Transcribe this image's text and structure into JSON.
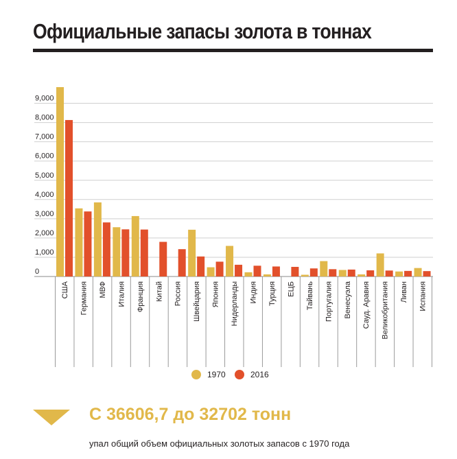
{
  "title": "Официальные запасы золота в тоннах",
  "colors": {
    "series_1970": "#e1b84a",
    "series_2016": "#e2502b",
    "grid": "#cfcfcf",
    "text": "#231f20"
  },
  "chart_data": {
    "type": "bar",
    "title": "Официальные запасы золота в тоннах",
    "xlabel": "",
    "ylabel": "",
    "ylim": [
      0,
      10000
    ],
    "yticks": [
      0,
      1000,
      2000,
      3000,
      4000,
      5000,
      6000,
      7000,
      8000,
      9000
    ],
    "ytick_labels": [
      "0",
      "1,000",
      "2,000",
      "3,000",
      "4,000",
      "5,000",
      "6,000",
      "7,000",
      "8,000",
      "9,000"
    ],
    "grid": true,
    "legend_position": "bottom",
    "categories": [
      "США",
      "Германия",
      "МВФ",
      "Италия",
      "Франция",
      "Китай",
      "Россия",
      "Швейцария",
      "Япония",
      "Нидерланды",
      "Индия",
      "Турция",
      "ЕЦБ",
      "Тайвань",
      "Португалия",
      "Венесуэла",
      "Сауд. Аравия",
      "Великобритания",
      "Ливан",
      "Испания"
    ],
    "series": [
      {
        "name": "1970",
        "values": [
          9840,
          3540,
          3850,
          2560,
          3140,
          0,
          0,
          2430,
          480,
          1590,
          220,
          110,
          0,
          90,
          800,
          340,
          110,
          1200,
          260,
          440
        ]
      },
      {
        "name": "2016",
        "values": [
          8130,
          3380,
          2810,
          2450,
          2440,
          1800,
          1420,
          1040,
          770,
          610,
          560,
          520,
          500,
          420,
          380,
          360,
          320,
          310,
          290,
          280
        ]
      }
    ]
  },
  "legend": {
    "item_1970": "1970",
    "item_2016": "2016"
  },
  "summary": {
    "headline": "С 36606,7 до 32702 тонн",
    "subtext": "упал общий объем официальных золотых запасов с 1970 года"
  }
}
